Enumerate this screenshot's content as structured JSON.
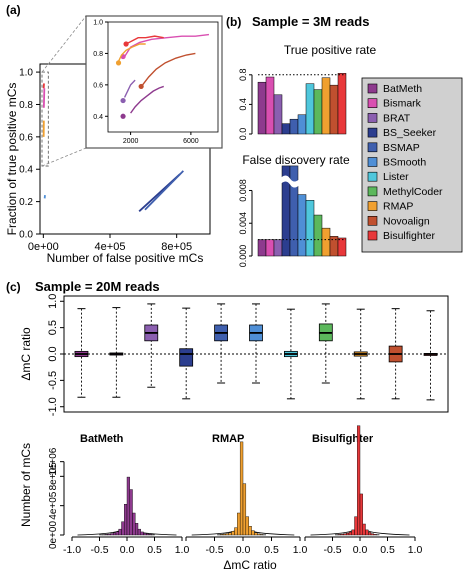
{
  "panels": {
    "a": {
      "label": "(a)"
    },
    "b": {
      "label": "(b)",
      "title": "Sample = 3M reads",
      "tpr_title": "True positive rate",
      "fdr_title": "False discovery rate"
    },
    "c": {
      "label": "(c)",
      "title": "Sample = 20M reads"
    }
  },
  "legend": {
    "methods": [
      {
        "name": "BatMeth",
        "color": "#8e3a8e"
      },
      {
        "name": "Bismark",
        "color": "#d94fb1"
      },
      {
        "name": "BRAT",
        "color": "#8b5fb0"
      },
      {
        "name": "BS_Seeker",
        "color": "#2c3e8f"
      },
      {
        "name": "BSMAP",
        "color": "#3f5fae"
      },
      {
        "name": "BSmooth",
        "color": "#4f8fd6"
      },
      {
        "name": "Lister",
        "color": "#4fc7dc"
      },
      {
        "name": "MethylCoder",
        "color": "#5cb85c"
      },
      {
        "name": "RMAP",
        "color": "#f0a030"
      },
      {
        "name": "Novoalign",
        "color": "#c0502f"
      },
      {
        "name": "Bisulfighter",
        "color": "#e8383a"
      }
    ]
  },
  "chart_data": [
    {
      "id": "a",
      "type": "line",
      "xlabel": "Number of false positive mCs",
      "ylabel": "Fraction of true positive mCs",
      "xlim": [
        -20000,
        1000000
      ],
      "ylim": [
        0,
        1.05
      ],
      "xticks": [
        "0e+00",
        "4e+05",
        "8e+05"
      ],
      "xtick_values": [
        0,
        400000,
        800000
      ],
      "yticks": [
        "0.0",
        "0.2",
        "0.4",
        "0.6",
        "0.8",
        "1.0"
      ],
      "ytick_values": [
        0,
        0.2,
        0.4,
        0.6,
        0.8,
        1.0
      ],
      "series": [
        {
          "color": "#2c3e8f",
          "points": [
            [
              575000,
              0.14
            ],
            [
              820000,
              0.37
            ]
          ]
        },
        {
          "color": "#3f5fae",
          "points": [
            [
              610000,
              0.15
            ],
            [
              840000,
              0.39
            ]
          ]
        },
        {
          "color": "#4f8fd6",
          "points": [
            [
              8000,
              0.22
            ],
            [
              10000,
              0.24
            ]
          ]
        },
        {
          "color": "#e8383a",
          "points": [
            [
              2000,
              0.9
            ],
            [
              4000,
              0.93
            ]
          ]
        },
        {
          "color": "#d94fb1",
          "points": [
            [
              3000,
              0.78
            ],
            [
              6000,
              0.9
            ]
          ]
        },
        {
          "color": "#f0a030",
          "points": [
            [
              2000,
              0.6
            ],
            [
              3000,
              0.7
            ]
          ]
        }
      ]
    },
    {
      "id": "a-inset",
      "type": "line",
      "xlim": [
        500,
        7800
      ],
      "ylim": [
        0.3,
        1.0
      ],
      "xticks": [
        "2000",
        "6000"
      ],
      "xtick_values": [
        2000,
        6000
      ],
      "yticks": [
        "0.4",
        "0.6",
        "0.8",
        "1.0"
      ],
      "ytick_values": [
        0.4,
        0.6,
        0.8,
        1.0
      ],
      "series": [
        {
          "name": "BatMeth",
          "color": "#8e3a8e",
          "points": [
            [
              2000,
              0.42
            ],
            [
              2300,
              0.46
            ],
            [
              2700,
              0.5
            ],
            [
              3100,
              0.53
            ],
            [
              3500,
              0.56
            ],
            [
              3900,
              0.58
            ],
            [
              4200,
              0.59
            ]
          ],
          "start": [
            1500,
            0.4
          ]
        },
        {
          "name": "Bismark",
          "color": "#d94fb1",
          "points": [
            [
              1600,
              0.78
            ],
            [
              2000,
              0.84
            ],
            [
              2600,
              0.87
            ],
            [
              3400,
              0.89
            ],
            [
              4400,
              0.9
            ],
            [
              5400,
              0.91
            ],
            [
              6300,
              0.91
            ],
            [
              7200,
              0.92
            ]
          ],
          "start": [
            1500,
            0.78
          ]
        },
        {
          "name": "BRAT",
          "color": "#8b5fb0",
          "points": [
            [
              1600,
              0.52
            ],
            [
              1800,
              0.56
            ],
            [
              2000,
              0.6
            ],
            [
              2300,
              0.63
            ]
          ],
          "start": [
            1500,
            0.5
          ]
        },
        {
          "name": "Novoalign",
          "color": "#c0502f",
          "points": [
            [
              2800,
              0.6
            ],
            [
              3200,
              0.65
            ],
            [
              3700,
              0.7
            ],
            [
              4300,
              0.74
            ],
            [
              5000,
              0.77
            ],
            [
              5700,
              0.79
            ],
            [
              6300,
              0.8
            ]
          ],
          "start": [
            2700,
            0.59
          ]
        },
        {
          "name": "Bisulfighter",
          "color": "#e8383a",
          "points": [
            [
              1700,
              0.86
            ],
            [
              2100,
              0.88
            ],
            [
              2500,
              0.9
            ],
            [
              3000,
              0.9
            ],
            [
              3600,
              0.91
            ],
            [
              4200,
              0.9
            ]
          ],
          "start": [
            1700,
            0.86
          ]
        },
        {
          "name": "RMAP",
          "color": "#f0a030",
          "points": [
            [
              1200,
              0.75
            ],
            [
              1400,
              0.79
            ],
            [
              1700,
              0.82
            ],
            [
              2100,
              0.84
            ],
            [
              2600,
              0.86
            ],
            [
              3000,
              0.86
            ]
          ],
          "start": [
            1200,
            0.74
          ]
        }
      ]
    },
    {
      "id": "b-tpr",
      "type": "bar",
      "title": "True positive rate",
      "categories": [
        "BatMeth",
        "Bismark",
        "BRAT",
        "BS_Seeker",
        "BSMAP",
        "BSmooth",
        "Lister",
        "MethylCoder",
        "RMAP",
        "Novoalign",
        "Bisulfighter"
      ],
      "values": [
        0.7,
        0.77,
        0.53,
        0.14,
        0.2,
        0.26,
        0.68,
        0.6,
        0.76,
        0.66,
        0.82
      ],
      "ylim": [
        0,
        1.0
      ],
      "yticks": [
        "0.0",
        "0.4",
        "0.8"
      ],
      "ytick_values": [
        0,
        0.4,
        0.8
      ],
      "reference_line": 0.8
    },
    {
      "id": "b-fdr",
      "type": "bar",
      "title": "False discovery rate",
      "categories": [
        "BatMeth",
        "Bismark",
        "BRAT",
        "BS_Seeker",
        "BSMAP",
        "BSmooth",
        "Lister",
        "MethylCoder",
        "RMAP",
        "Novoalign",
        "Bisulfighter"
      ],
      "values": [
        0.002,
        0.002,
        0.002,
        0.011,
        0.011,
        0.0075,
        0.0068,
        0.005,
        0.0034,
        0.0024,
        0.0022
      ],
      "ylim": [
        0,
        0.0105
      ],
      "yticks": [
        "0.000",
        "0.004",
        "0.008"
      ],
      "ytick_values": [
        0,
        0.004,
        0.008
      ],
      "reference_line": 0.002,
      "axis_break": 0.0091
    },
    {
      "id": "c-box",
      "type": "box",
      "ylabel": "ΔmC ratio",
      "ylim": [
        -1.1,
        1.1
      ],
      "yticks": [
        "-1.0",
        "-0.5",
        "0.0",
        "0.5",
        "1.0"
      ],
      "ytick_values": [
        -1.0,
        -0.5,
        0.0,
        0.5,
        1.0
      ],
      "reference_line": 0,
      "boxes": [
        {
          "name": "BatMeth",
          "whisker_low": -0.82,
          "q1": -0.05,
          "median": 0.0,
          "q3": 0.05,
          "whisker_high": 0.86
        },
        {
          "name": "Bismark",
          "whisker_low": -0.82,
          "q1": -0.02,
          "median": 0.0,
          "q3": 0.02,
          "whisker_high": 0.88
        },
        {
          "name": "BRAT",
          "whisker_low": -0.63,
          "q1": 0.25,
          "median": 0.4,
          "q3": 0.55,
          "whisker_high": 0.95
        },
        {
          "name": "BS_Seeker",
          "whisker_low": -0.85,
          "q1": -0.23,
          "median": 0.0,
          "q3": 0.1,
          "whisker_high": 0.87
        },
        {
          "name": "BSMAP",
          "whisker_low": -0.55,
          "q1": 0.25,
          "median": 0.4,
          "q3": 0.55,
          "whisker_high": 0.95
        },
        {
          "name": "BSmooth",
          "whisker_low": -0.55,
          "q1": 0.25,
          "median": 0.4,
          "q3": 0.55,
          "whisker_high": 0.95
        },
        {
          "name": "Lister",
          "whisker_low": -0.85,
          "q1": -0.05,
          "median": 0.0,
          "q3": 0.05,
          "whisker_high": 0.85
        },
        {
          "name": "MethylCoder",
          "whisker_low": -0.55,
          "q1": 0.25,
          "median": 0.4,
          "q3": 0.57,
          "whisker_high": 0.95
        },
        {
          "name": "RMAP",
          "whisker_low": -0.85,
          "q1": -0.04,
          "median": 0.0,
          "q3": 0.04,
          "whisker_high": 0.85
        },
        {
          "name": "Novoalign",
          "whisker_low": -0.85,
          "q1": -0.15,
          "median": 0.0,
          "q3": 0.15,
          "whisker_high": 0.86
        },
        {
          "name": "Bisulfighter",
          "whisker_low": -0.87,
          "q1": -0.02,
          "median": 0.0,
          "q3": 0.01,
          "whisker_high": 0.82
        }
      ]
    },
    {
      "id": "c-hist",
      "type": "bar",
      "ylabel": "Number of mCs",
      "xlabel": "ΔmC ratio",
      "ylim": [
        0,
        1500000
      ],
      "yticks": [
        "0e+00",
        "4e+05",
        "8e+05",
        "1e+06"
      ],
      "ytick_values": [
        0,
        400000,
        800000,
        1000000
      ],
      "xticks": [
        "-1.0",
        "-0.5",
        "0.0",
        "0.5",
        "1.0"
      ],
      "xtick_values": [
        -1.0,
        -0.5,
        0.0,
        0.5,
        1.0
      ],
      "bin_width": 0.05,
      "panels": [
        {
          "name": "BatMeth",
          "color": "#8e3a8e",
          "bins": [
            [
              -0.5,
              4000
            ],
            [
              -0.45,
              6000
            ],
            [
              -0.4,
              9000
            ],
            [
              -0.35,
              13000
            ],
            [
              -0.3,
              20000
            ],
            [
              -0.25,
              30000
            ],
            [
              -0.2,
              45000
            ],
            [
              -0.15,
              80000
            ],
            [
              -0.1,
              180000
            ],
            [
              -0.05,
              420000
            ],
            [
              0.0,
              790000
            ],
            [
              0.05,
              620000
            ],
            [
              0.1,
              300000
            ],
            [
              0.15,
              160000
            ],
            [
              0.2,
              80000
            ],
            [
              0.25,
              42000
            ],
            [
              0.3,
              25000
            ],
            [
              0.35,
              15000
            ],
            [
              0.4,
              9000
            ],
            [
              0.45,
              5000
            ]
          ]
        },
        {
          "name": "RMAP",
          "color": "#f0a030",
          "bins": [
            [
              -0.45,
              5000
            ],
            [
              -0.4,
              9000
            ],
            [
              -0.35,
              14000
            ],
            [
              -0.3,
              20000
            ],
            [
              -0.25,
              30000
            ],
            [
              -0.2,
              50000
            ],
            [
              -0.15,
              100000
            ],
            [
              -0.1,
              300000
            ],
            [
              -0.05,
              1270000
            ],
            [
              0.0,
              700000
            ],
            [
              0.05,
              250000
            ],
            [
              0.1,
              120000
            ],
            [
              0.15,
              60000
            ],
            [
              0.2,
              30000
            ],
            [
              0.25,
              15000
            ],
            [
              0.3,
              8000
            ],
            [
              0.35,
              4000
            ]
          ]
        },
        {
          "name": "Bisulfighter",
          "color": "#e8383a",
          "bins": [
            [
              -0.45,
              5000
            ],
            [
              -0.4,
              8000
            ],
            [
              -0.35,
              12000
            ],
            [
              -0.3,
              18000
            ],
            [
              -0.25,
              26000
            ],
            [
              -0.2,
              40000
            ],
            [
              -0.15,
              70000
            ],
            [
              -0.1,
              250000
            ],
            [
              -0.05,
              1490000
            ],
            [
              0.0,
              560000
            ],
            [
              0.05,
              150000
            ],
            [
              0.1,
              70000
            ],
            [
              0.15,
              35000
            ],
            [
              0.2,
              18000
            ],
            [
              0.25,
              9000
            ],
            [
              0.3,
              5000
            ]
          ]
        }
      ]
    }
  ]
}
